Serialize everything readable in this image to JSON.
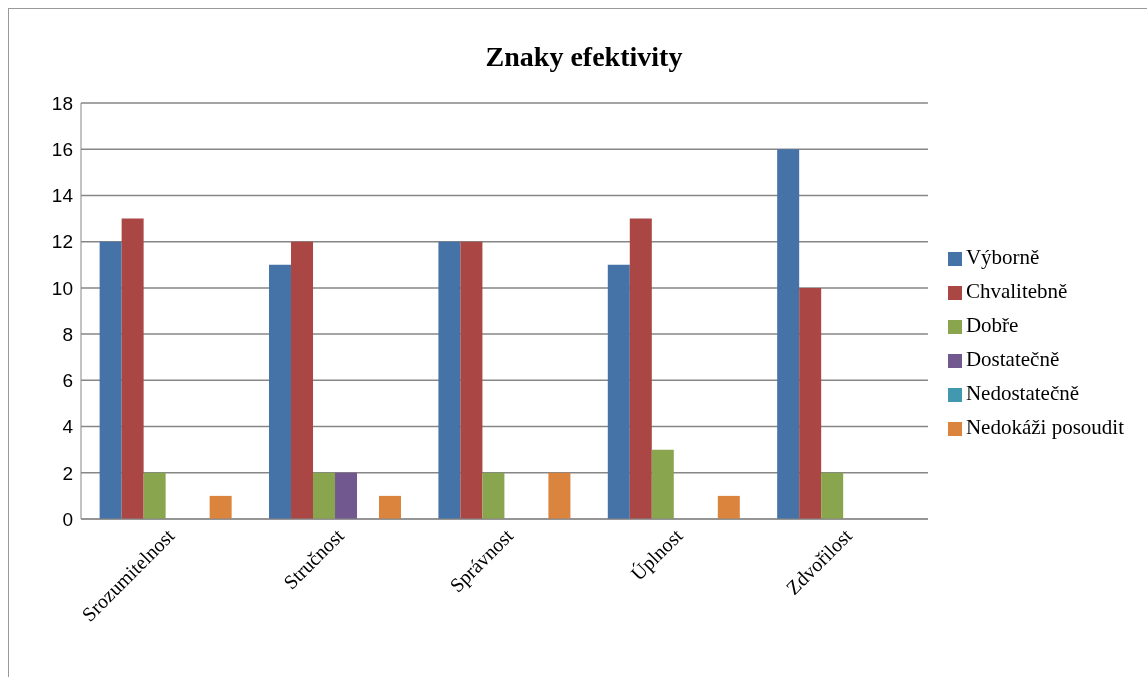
{
  "chart_data": {
    "type": "bar",
    "title": "Znaky efektivity",
    "categories": [
      "Srozumitelnost",
      "Stručnost",
      "Správnost",
      "Úplnost",
      "Zdvořilost"
    ],
    "series": [
      {
        "name": "Výborně",
        "color": "#4572a7",
        "values": [
          12,
          11,
          12,
          11,
          16
        ]
      },
      {
        "name": "Chvalitebně",
        "color": "#aa4643",
        "values": [
          13,
          12,
          12,
          13,
          10
        ]
      },
      {
        "name": "Dobře",
        "color": "#89a54e",
        "values": [
          2,
          2,
          2,
          3,
          2
        ]
      },
      {
        "name": "Dostatečně",
        "color": "#71588f",
        "values": [
          0,
          2,
          0,
          0,
          0
        ]
      },
      {
        "name": "Nedostatečně",
        "color": "#4198af",
        "values": [
          0,
          0,
          0,
          0,
          0
        ]
      },
      {
        "name": "Nedokáži posoudit",
        "color": "#db843d",
        "values": [
          1,
          1,
          2,
          1,
          0
        ]
      }
    ],
    "ylim": [
      0,
      18
    ],
    "yticks": [
      0,
      2,
      4,
      6,
      8,
      10,
      12,
      14,
      16,
      18
    ],
    "grid": "y",
    "legend": "right"
  }
}
